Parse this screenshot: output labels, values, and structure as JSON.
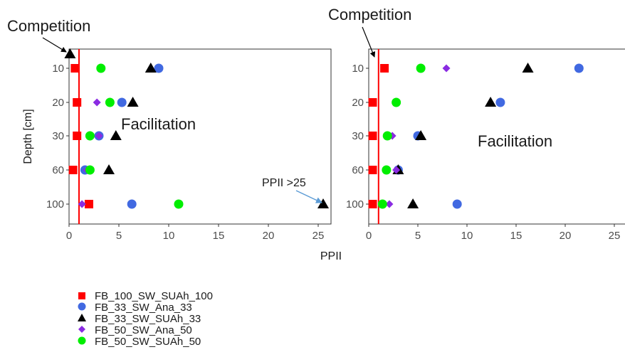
{
  "chart_data": [
    {
      "type": "scatter",
      "xlabel": "PPII",
      "ylabel": "Depth [cm]",
      "xlim": [
        0,
        26.5
      ],
      "x_ticks": [
        0,
        5,
        10,
        15,
        20,
        25
      ],
      "y_categories": [
        "10",
        "20",
        "30",
        "60",
        "100"
      ],
      "reference_line_x": 1,
      "annotations": [
        "Competition",
        "Facilitation",
        "PPII >25"
      ],
      "series": [
        {
          "name": "FB_100_SW_SUAh_100",
          "x": [
            0.6,
            0.8,
            0.8,
            0.4,
            2.0
          ],
          "y": [
            "10",
            "20",
            "30",
            "60",
            "100"
          ]
        },
        {
          "name": "FB_33_SW_Ana_33",
          "x": [
            9.0,
            5.3,
            3.0,
            1.6,
            6.3
          ],
          "y": [
            "10",
            "20",
            "30",
            "60",
            "100"
          ]
        },
        {
          "name": "FB_33_SW_SUAh_33",
          "x": [
            8.2,
            6.4,
            4.7,
            4.0,
            25.5
          ],
          "y": [
            "10",
            "20",
            "30",
            "60",
            "100"
          ]
        },
        {
          "name": "FB_50_SW_Ana_50",
          "x": [
            null,
            2.8,
            3.0,
            1.8,
            1.3
          ],
          "y": [
            "10",
            "20",
            "30",
            "60",
            "100"
          ]
        },
        {
          "name": "FB_50_SW_SUAh_50",
          "x": [
            3.2,
            4.1,
            2.1,
            2.1,
            11.0
          ],
          "y": [
            "10",
            "20",
            "30",
            "60",
            "100"
          ]
        }
      ],
      "extra_points": [
        {
          "series": "FB_33_SW_SUAh_33",
          "x": 0.1,
          "y": "above 10"
        }
      ]
    },
    {
      "type": "scatter",
      "xlabel": "PPII",
      "ylabel": "",
      "xlim": [
        0,
        26.5
      ],
      "x_ticks": [
        0,
        5,
        10,
        15,
        20,
        25
      ],
      "y_categories": [
        "10",
        "20",
        "30",
        "60",
        "100"
      ],
      "reference_line_x": 1,
      "annotations": [
        "Competition",
        "Facilitation"
      ],
      "series": [
        {
          "name": "FB_100_SW_SUAh_100",
          "x": [
            1.6,
            0.4,
            0.4,
            0.4,
            0.4
          ],
          "y": [
            "10",
            "20",
            "30",
            "60",
            "100"
          ]
        },
        {
          "name": "FB_33_SW_Ana_33",
          "x": [
            21.4,
            13.4,
            5.0,
            3.0,
            9.0
          ],
          "y": [
            "10",
            "20",
            "30",
            "60",
            "100"
          ]
        },
        {
          "name": "FB_33_SW_SUAh_33",
          "x": [
            16.2,
            12.4,
            5.3,
            3.0,
            4.5
          ],
          "y": [
            "10",
            "20",
            "30",
            "60",
            "100"
          ]
        },
        {
          "name": "FB_50_SW_Ana_50",
          "x": [
            7.9,
            null,
            2.4,
            2.8,
            2.1
          ],
          "y": [
            "10",
            "20",
            "30",
            "60",
            "100"
          ]
        },
        {
          "name": "FB_50_SW_SUAh_50",
          "x": [
            5.3,
            2.8,
            1.9,
            1.8,
            1.4
          ],
          "y": [
            "10",
            "20",
            "30",
            "60",
            "100"
          ]
        }
      ],
      "extra_points": []
    }
  ],
  "legend": [
    {
      "label": "FB_100_SW_SUAh_100",
      "shape": "square",
      "color": "#ff0000"
    },
    {
      "label": "FB_33_SW_Ana_33",
      "shape": "circle",
      "color": "#4169e1"
    },
    {
      "label": "FB_33_SW_SUAh_33",
      "shape": "triangle",
      "color": "#000000"
    },
    {
      "label": "FB_50_SW_Ana_50",
      "shape": "diamond",
      "color": "#8a2be2"
    },
    {
      "label": "FB_50_SW_SUAh_50",
      "shape": "circle",
      "color": "#00ee00"
    }
  ],
  "colors": {
    "reference_line": "#ff0000",
    "arrow": "#5b9bd5",
    "FB_100_SW_SUAh_100": "#ff0000",
    "FB_33_SW_Ana_33": "#4169e1",
    "FB_33_SW_SUAh_33": "#000000",
    "FB_50_SW_Ana_50": "#8a2be2",
    "FB_50_SW_SUAh_50": "#00ee00"
  }
}
